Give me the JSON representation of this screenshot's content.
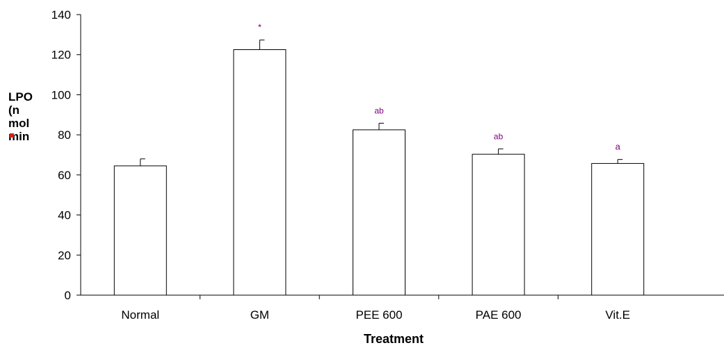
{
  "chart_data": {
    "type": "bar",
    "categories": [
      "Normal",
      "GM",
      "PEE 600",
      "PAE 600",
      "Vit.E"
    ],
    "values": [
      64.5,
      122.5,
      82.5,
      70.3,
      65.7
    ],
    "errors": [
      3.5,
      4.8,
      3.3,
      2.7,
      2.0
    ],
    "annotations": [
      "",
      "*",
      "ab",
      "ab",
      "a"
    ],
    "annotation_color": "#800080",
    "bar_fill": "#ffffff",
    "bar_stroke": "#000000",
    "xlabel": "Treatment",
    "ylabel_lines": [
      "LPO",
      "(n",
      "mol",
      "min"
    ],
    "ylim": [
      0,
      140
    ],
    "yticks": [
      0,
      20,
      40,
      60,
      80,
      100,
      120,
      140
    ],
    "grid": false,
    "legend": "none"
  }
}
